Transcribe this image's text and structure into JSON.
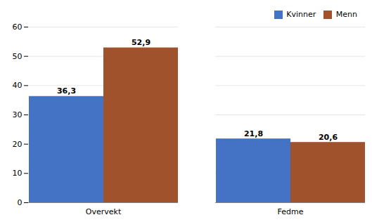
{
  "chart_data": {
    "type": "bar",
    "categories": [
      "Overvekt",
      "Fedme"
    ],
    "series": [
      {
        "name": "Kvinner",
        "color": "#4472c4",
        "values": [
          36.3,
          21.8
        ],
        "value_labels": [
          "36,3",
          "21,8"
        ]
      },
      {
        "name": "Menn",
        "color": "#a0522d",
        "values": [
          52.9,
          20.6
        ],
        "value_labels": [
          "52,9",
          "20,6"
        ]
      }
    ],
    "ylim": [
      0,
      60
    ],
    "yticks": [
      0,
      10,
      20,
      30,
      40,
      50,
      60
    ],
    "grid": true,
    "legend": "upper right",
    "data_labels": true
  }
}
